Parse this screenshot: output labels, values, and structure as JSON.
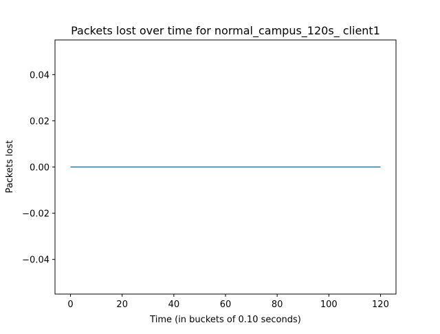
{
  "chart_data": {
    "type": "line",
    "title": "Packets lost over time for normal_campus_120s_ client1",
    "xlabel": "Time (in buckets of 0.10 seconds)",
    "ylabel": "Packets lost",
    "xlim": [
      -6,
      126
    ],
    "ylim": [
      -0.055,
      0.055
    ],
    "x_ticks": [
      0,
      20,
      40,
      60,
      80,
      100,
      120
    ],
    "y_ticks": [
      -0.04,
      -0.02,
      0.0,
      0.02,
      0.04
    ],
    "x_tick_labels": [
      "0",
      "20",
      "40",
      "60",
      "80",
      "100",
      "120"
    ],
    "y_tick_labels": [
      "−0.04",
      "−0.02",
      "0.00",
      "0.02",
      "0.04"
    ],
    "grid": false,
    "series": [
      {
        "x": [
          0,
          120
        ],
        "y": [
          0,
          0
        ],
        "color": "#1f77b4"
      }
    ]
  }
}
